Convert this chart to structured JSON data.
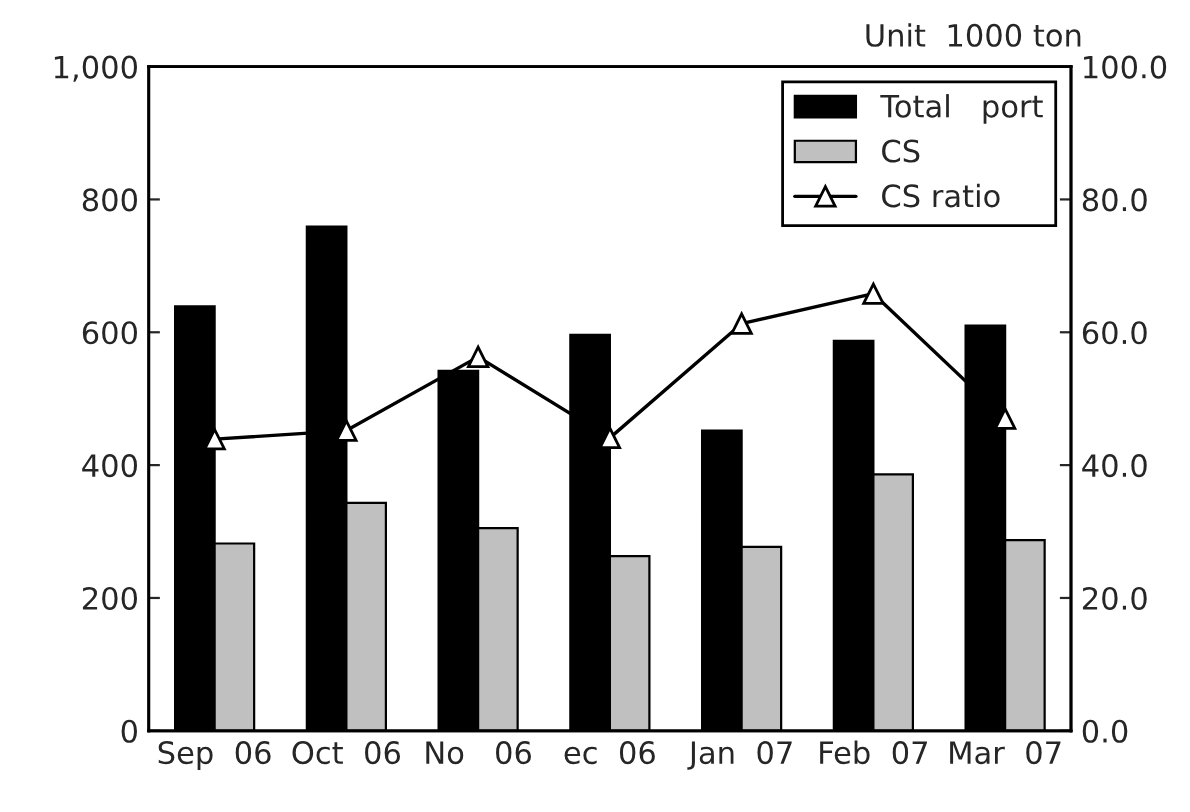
{
  "chart_data": {
    "type": "bar",
    "annotations": [
      "Unit  1000 ton"
    ],
    "categories": [
      "Sep  06",
      "Oct  06",
      "No   06",
      "ec  06",
      "Jan  07",
      "Feb  07",
      "Mar  07"
    ],
    "series": [
      {
        "name": "Total   port",
        "color": "#000000",
        "values": [
          639,
          759,
          542,
          596,
          452,
          587,
          610
        ]
      },
      {
        "name": "CS",
        "color": "#c0c0c0",
        "values": [
          282,
          343,
          305,
          263,
          277,
          386,
          287
        ]
      },
      {
        "name": "CS ratio",
        "type": "line",
        "axis": "y2",
        "color": "#000000",
        "marker": "triangle",
        "values": [
          43.9,
          45.2,
          56.3,
          44.1,
          61.3,
          65.8,
          47.0
        ]
      }
    ],
    "ylim": [
      0,
      1000
    ],
    "yticks": [
      0,
      200,
      400,
      600,
      800,
      {
        "value": 1000,
        "label": "1,000"
      }
    ],
    "y2lim": [
      0,
      100
    ],
    "y2ticks": [
      {
        "value": 0,
        "label": "0.0"
      },
      {
        "value": 20,
        "label": "20.0"
      },
      {
        "value": 40,
        "label": "40.0"
      },
      {
        "value": 60,
        "label": "60.0"
      },
      {
        "value": 80,
        "label": "80.0"
      },
      {
        "value": 100,
        "label": "100.0"
      }
    ],
    "legend": "top right",
    "grid": false
  }
}
